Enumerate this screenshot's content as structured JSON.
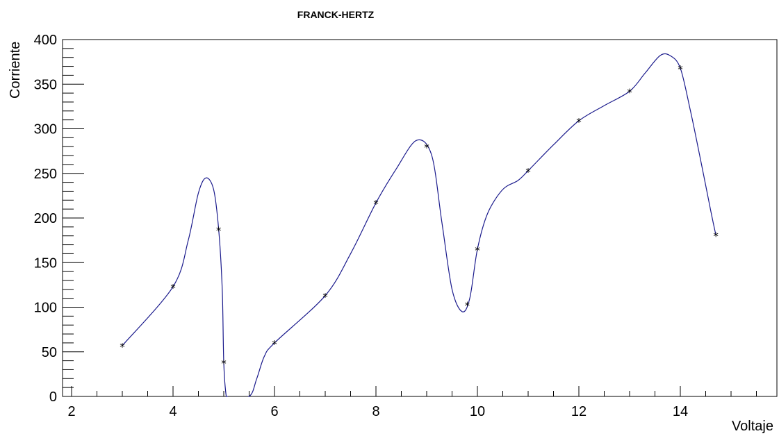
{
  "chart_data": {
    "type": "scatter",
    "title": "FRANCK-HERTZ",
    "xlabel": "Voltaje",
    "ylabel": "Corriente",
    "xlim": [
      1.8,
      15.5
    ],
    "ylim": [
      0,
      400
    ],
    "x_ticks": [
      2,
      4,
      6,
      8,
      10,
      12,
      14
    ],
    "y_ticks": [
      0,
      50,
      100,
      150,
      200,
      250,
      300,
      350,
      400
    ],
    "grid": false,
    "legend": "none",
    "colors": {
      "curve": "#1a1a8c",
      "markers": "#000000",
      "axes": "#000000"
    },
    "marker_symbol": "*",
    "series": [
      {
        "x": [
          3,
          4,
          4.9,
          5,
          6,
          7,
          8,
          9,
          9.8,
          10,
          11,
          12,
          13,
          14,
          14.7
        ],
        "y": [
          57,
          123,
          187,
          38,
          60,
          113,
          217,
          280,
          103,
          165,
          253,
          309,
          342,
          368,
          181
        ]
      }
    ],
    "fit_curve": {
      "x": [
        3,
        4,
        4.3,
        4.5,
        4.65,
        4.8,
        4.9,
        4.97,
        5.0,
        5.05,
        5.1,
        5.5,
        5.65,
        5.8,
        6.0,
        7.0,
        7.5,
        8.0,
        8.4,
        8.8,
        9.1,
        9.3,
        9.5,
        9.7,
        9.85,
        10.0,
        10.2,
        10.5,
        10.8,
        11.0,
        11.5,
        12.0,
        12.5,
        13.0,
        13.3,
        13.6,
        13.8,
        14.0,
        14.2,
        14.4,
        14.6,
        14.7
      ],
      "y": [
        57,
        123,
        175,
        228,
        245,
        232,
        187,
        120,
        38,
        0,
        0,
        0,
        20,
        45,
        60,
        113,
        160,
        217,
        255,
        287,
        270,
        195,
        120,
        95,
        110,
        165,
        205,
        232,
        242,
        253,
        282,
        309,
        326,
        342,
        362,
        382,
        382,
        368,
        320,
        265,
        208,
        181
      ]
    }
  }
}
